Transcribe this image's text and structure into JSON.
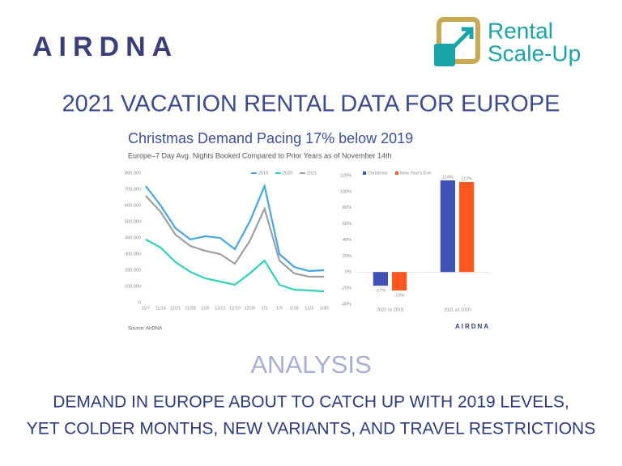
{
  "brand": {
    "airdna": "AIRDNA",
    "partner": [
      "Rental",
      "Scale-Up"
    ]
  },
  "header": {
    "title": "2021 VACATION RENTAL DATA FOR EUROPE"
  },
  "panel": {
    "title": "Christmas Demand Pacing 17% below 2019",
    "subtitle": "Europe–7 Day Avg. Nights Booked Compared to Prior Years as of November 14th",
    "source": "Source: AirDNA",
    "watermark": "AIRDNA"
  },
  "chart_data": [
    {
      "type": "line",
      "categories": [
        "11/7",
        "11/14",
        "11/21",
        "11/28",
        "12/5",
        "12/12",
        "12/19",
        "12/26",
        "1/2",
        "1/9",
        "1/16",
        "1/23",
        "1/30"
      ],
      "series": [
        {
          "name": "2019",
          "color": "#45a6e6",
          "values": [
            720000,
            600000,
            460000,
            390000,
            410000,
            400000,
            330000,
            500000,
            720000,
            300000,
            220000,
            195000,
            200000
          ]
        },
        {
          "name": "2020",
          "color": "#2fd3b5",
          "values": [
            390000,
            340000,
            250000,
            190000,
            150000,
            130000,
            110000,
            180000,
            260000,
            110000,
            80000,
            75000,
            70000
          ]
        },
        {
          "name": "2021",
          "color": "#9aa0a6",
          "values": [
            660000,
            560000,
            420000,
            350000,
            320000,
            300000,
            240000,
            380000,
            580000,
            260000,
            180000,
            160000,
            160000
          ]
        }
      ],
      "ylim": [
        0,
        800000
      ],
      "yticks": [
        0,
        {
          "value": 100000,
          "label": "100,000"
        },
        {
          "value": 200000,
          "label": "200,000"
        },
        {
          "value": 300000,
          "label": "300,000"
        },
        {
          "value": 400000,
          "label": "400,000"
        },
        {
          "value": 500000,
          "label": "500,000"
        },
        {
          "value": 600000,
          "label": "600,000"
        },
        {
          "value": 700000,
          "label": "700,000"
        },
        {
          "value": 800000,
          "label": "800,000"
        }
      ],
      "grid": false
    },
    {
      "type": "bar",
      "categories": [
        "2021 vs 2019",
        "2021 vs 2020"
      ],
      "series": [
        {
          "name": "Christmas",
          "color": "#3f51b5",
          "values": [
            -17,
            114
          ],
          "value_labels": [
            "-17%",
            "114%"
          ]
        },
        {
          "name": "New Year's Eve",
          "color": "#ff5722",
          "values": [
            -23,
            112
          ],
          "value_labels": [
            "-23%",
            "112%"
          ]
        }
      ],
      "ylim": [
        -40,
        120
      ],
      "yticks": [
        {
          "value": -40,
          "label": "-40%"
        },
        {
          "value": -20,
          "label": "-20%"
        },
        {
          "value": 0,
          "label": "0%"
        },
        {
          "value": 20,
          "label": "20%"
        },
        {
          "value": 40,
          "label": "40%"
        },
        {
          "value": 60,
          "label": "60%"
        },
        {
          "value": 80,
          "label": "80%"
        },
        {
          "value": 100,
          "label": "100%"
        },
        {
          "value": 120,
          "label": "120%"
        }
      ],
      "grid": false
    }
  ],
  "analysis": {
    "heading": "ANALYSIS",
    "lines": [
      "DEMAND IN EUROPE ABOUT TO CATCH UP WITH 2019 LEVELS,",
      "YET COLDER MONTHS, NEW VARIANTS, AND TRAVEL RESTRICTIONS"
    ]
  }
}
